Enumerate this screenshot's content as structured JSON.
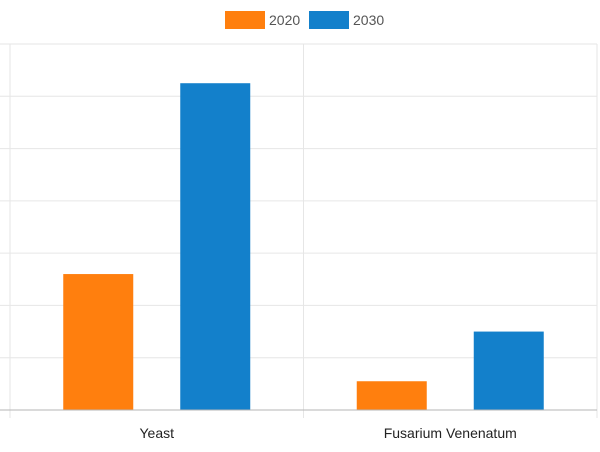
{
  "chart_data": {
    "type": "bar",
    "categories": [
      "Yeast",
      "Fusarium Venenatum"
    ],
    "series": [
      {
        "name": "2020",
        "color": "#ff7f0e",
        "values": [
          2.6,
          0.55
        ]
      },
      {
        "name": "2030",
        "color": "#1380cb",
        "values": [
          6.25,
          1.5
        ]
      }
    ],
    "ylim": [
      0,
      7
    ],
    "grid": true,
    "legend": "top"
  }
}
